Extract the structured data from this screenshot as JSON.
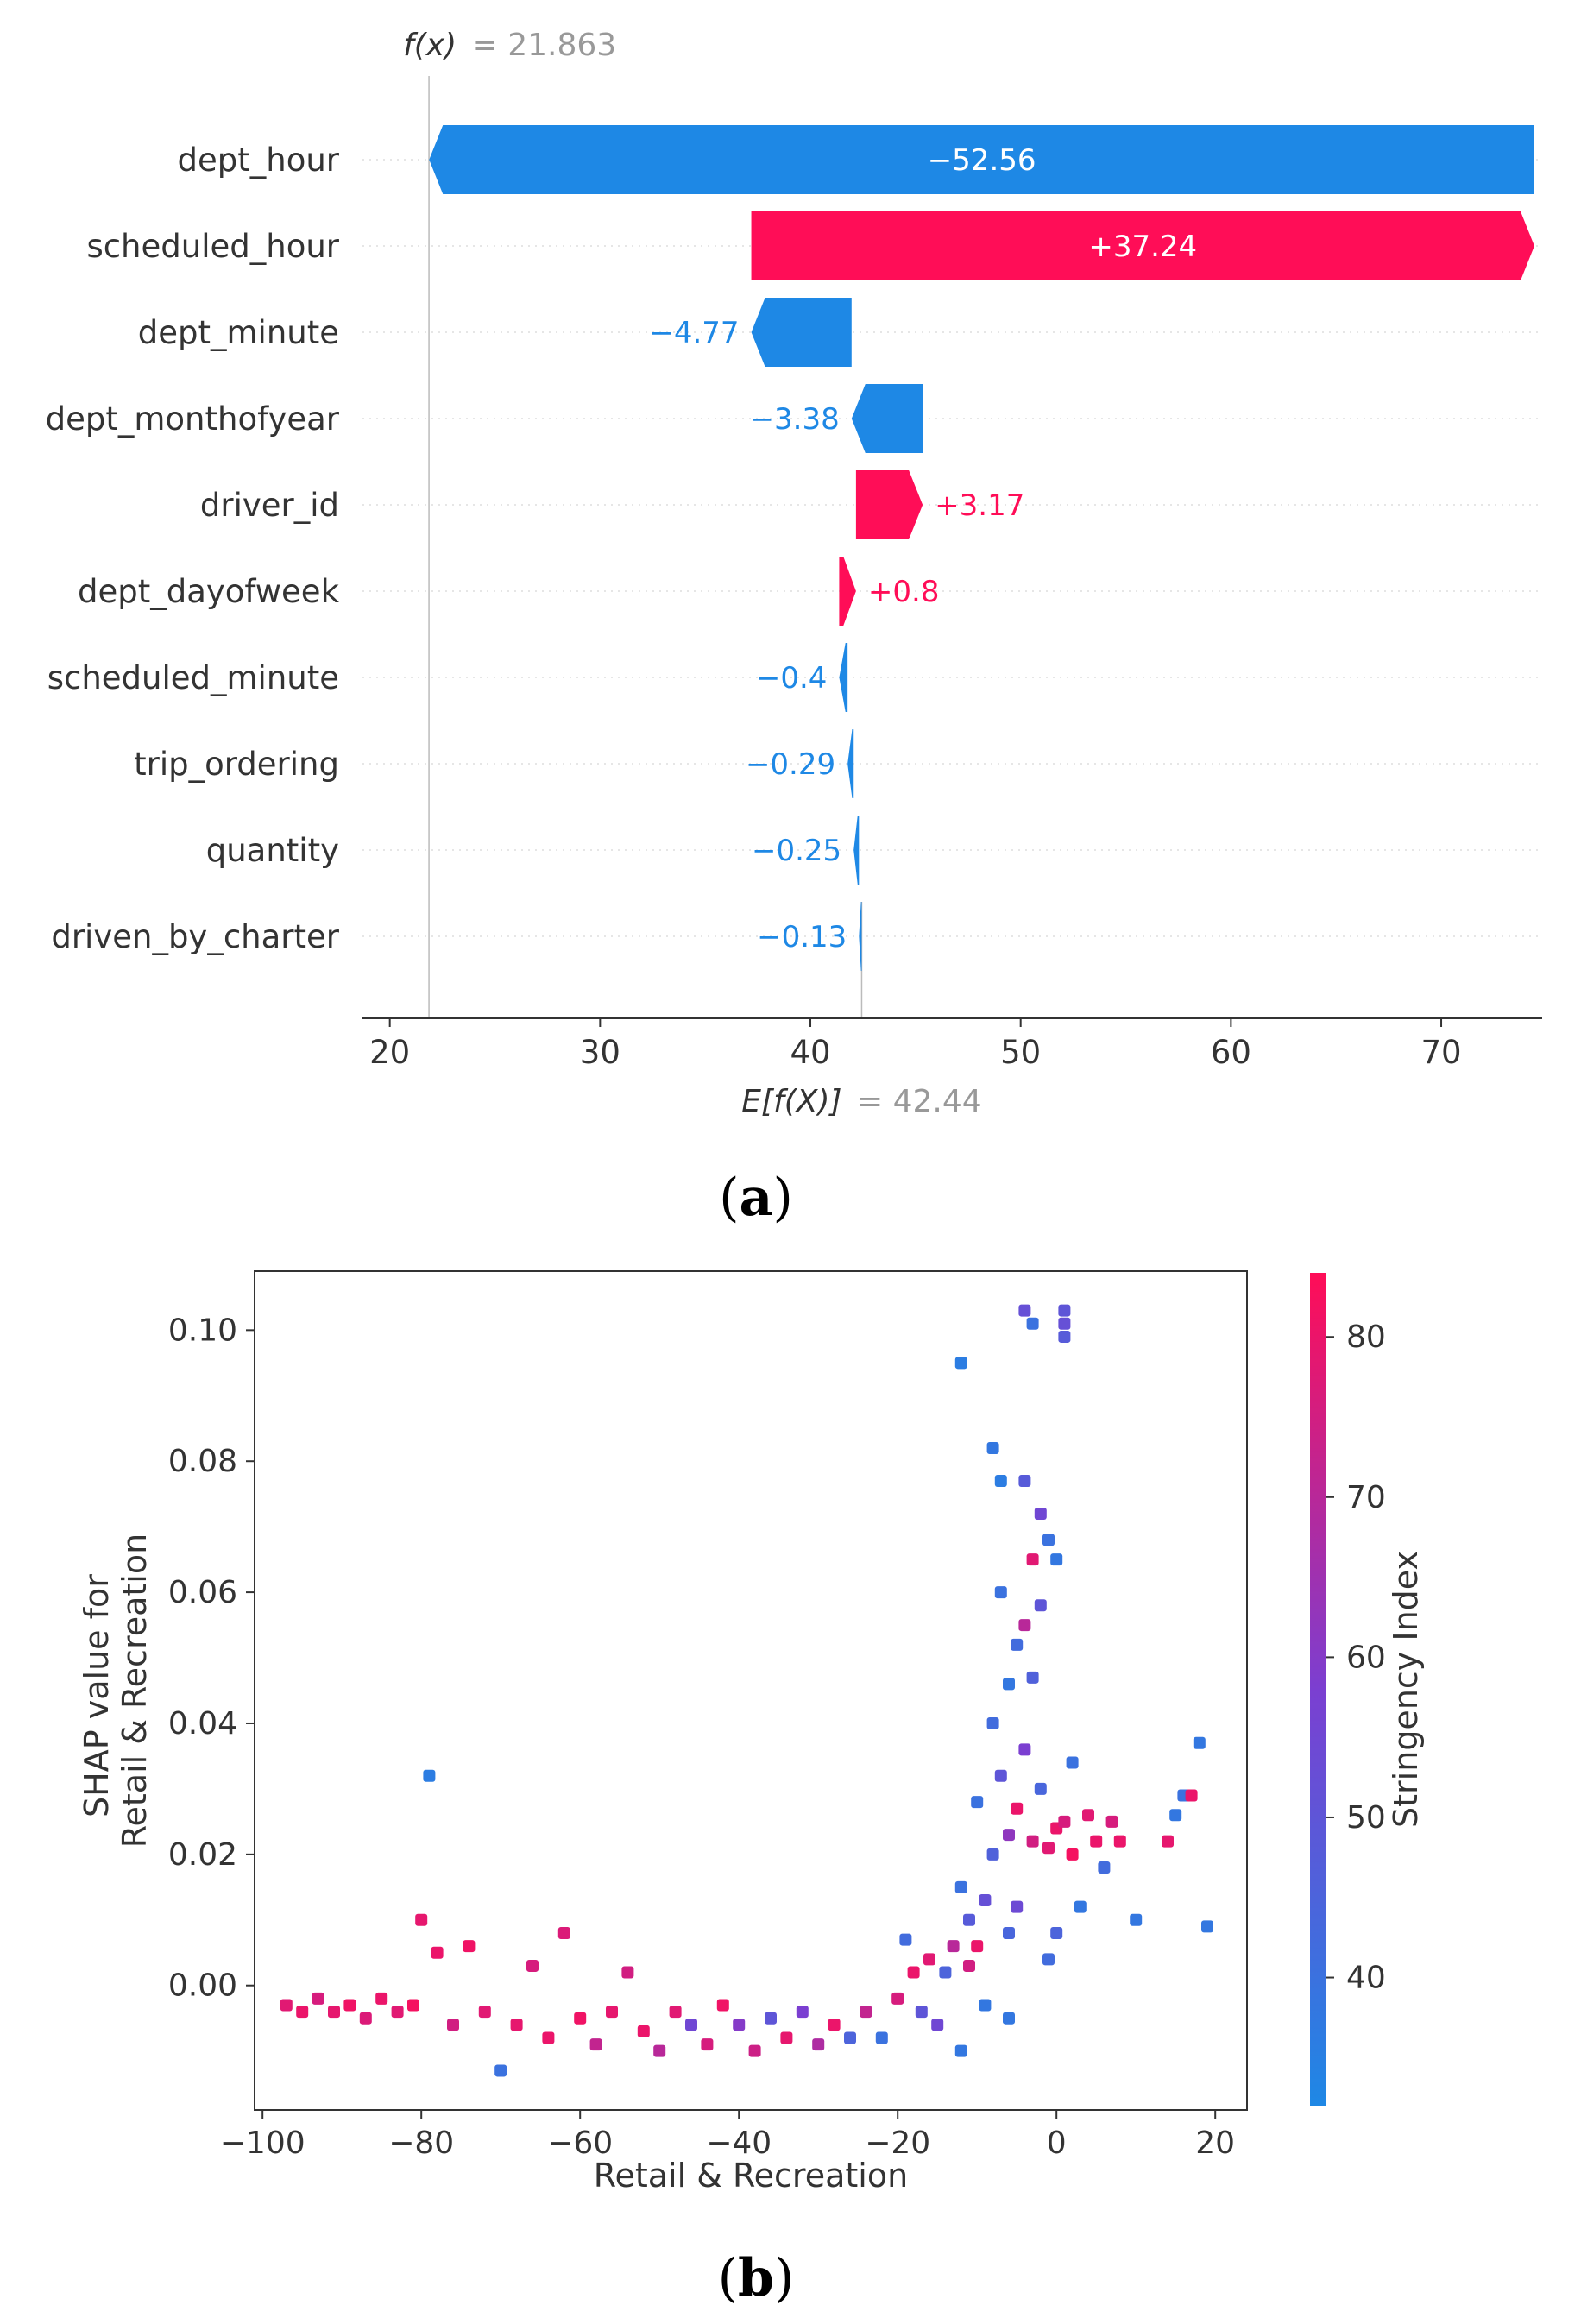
{
  "panels": {
    "a": {
      "label_open": "(",
      "label_letter": "a",
      "label_close": ")"
    },
    "b": {
      "label_open": "(",
      "label_letter": "b",
      "label_close": ")"
    }
  },
  "colors": {
    "positive": "#ff0d57",
    "negative": "#1e88e5",
    "text_gray": "#999999"
  },
  "chart_data": [
    {
      "type": "bar",
      "subtype": "shap-waterfall",
      "fx_label": "f(x)",
      "fx_eq": "= 21.863",
      "fx_value": 21.863,
      "base_label": "E[f(X)]",
      "base_eq": "= 42.44",
      "base_value": 42.44,
      "xlim": [
        18.7,
        74.8
      ],
      "xticks": [
        20,
        30,
        40,
        50,
        60,
        70
      ],
      "xtick_labels": [
        "20",
        "30",
        "40",
        "50",
        "60",
        "70"
      ],
      "bars": [
        {
          "feature": "dept_hour",
          "value": -52.56,
          "label": "−52.56"
        },
        {
          "feature": "scheduled_hour",
          "value": 37.24,
          "label": "+37.24"
        },
        {
          "feature": "dept_minute",
          "value": -4.77,
          "label": "−4.77"
        },
        {
          "feature": "dept_monthofyear",
          "value": -3.38,
          "label": "−3.38"
        },
        {
          "feature": "driver_id",
          "value": 3.17,
          "label": "+3.17"
        },
        {
          "feature": "dept_dayofweek",
          "value": 0.8,
          "label": "+0.8"
        },
        {
          "feature": "scheduled_minute",
          "value": -0.4,
          "label": "−0.4"
        },
        {
          "feature": "trip_ordering",
          "value": -0.29,
          "label": "−0.29"
        },
        {
          "feature": "quantity",
          "value": -0.25,
          "label": "−0.25"
        },
        {
          "feature": "driven_by_charter",
          "value": -0.13,
          "label": "−0.13"
        }
      ]
    },
    {
      "type": "scatter",
      "subtype": "shap-dependence",
      "xlabel": "Retail & Recreation",
      "ylabel_line1": "SHAP value for",
      "ylabel_line2": "Retail & Recreation",
      "xlim": [
        -101,
        24
      ],
      "ylim": [
        -0.019,
        0.109
      ],
      "xticks": [
        -100,
        -80,
        -60,
        -40,
        -20,
        0,
        20
      ],
      "xtick_labels": [
        "−100",
        "−80",
        "−60",
        "−40",
        "−20",
        "0",
        "20"
      ],
      "yticks": [
        0.0,
        0.02,
        0.04,
        0.06,
        0.08,
        0.1
      ],
      "ytick_labels": [
        "0.00",
        "0.02",
        "0.04",
        "0.06",
        "0.08",
        "0.10"
      ],
      "colorbar": {
        "label": "Stringency Index",
        "range": [
          32,
          84
        ],
        "ticks": [
          40,
          50,
          60,
          70,
          80
        ],
        "tick_labels": [
          "40",
          "50",
          "60",
          "70",
          "80"
        ],
        "low_color": "#1e88e5",
        "high_color": "#ff0d57"
      },
      "points": [
        [
          -97,
          -0.003,
          78
        ],
        [
          -95,
          -0.004,
          80
        ],
        [
          -93,
          -0.002,
          76
        ],
        [
          -91,
          -0.004,
          79
        ],
        [
          -89,
          -0.003,
          81
        ],
        [
          -87,
          -0.005,
          77
        ],
        [
          -85,
          -0.002,
          80
        ],
        [
          -83,
          -0.004,
          78
        ],
        [
          -81,
          -0.003,
          82
        ],
        [
          -80,
          0.01,
          79
        ],
        [
          -79,
          0.032,
          36
        ],
        [
          -78,
          0.005,
          80
        ],
        [
          -76,
          -0.006,
          75
        ],
        [
          -74,
          0.006,
          81
        ],
        [
          -72,
          -0.004,
          78
        ],
        [
          -70,
          -0.013,
          40
        ],
        [
          -68,
          -0.006,
          79
        ],
        [
          -66,
          0.003,
          76
        ],
        [
          -64,
          -0.008,
          80
        ],
        [
          -62,
          0.008,
          77
        ],
        [
          -60,
          -0.005,
          81
        ],
        [
          -58,
          -0.009,
          72
        ],
        [
          -56,
          -0.004,
          79
        ],
        [
          -54,
          0.002,
          75
        ],
        [
          -52,
          -0.007,
          80
        ],
        [
          -50,
          -0.01,
          70
        ],
        [
          -48,
          -0.004,
          78
        ],
        [
          -46,
          -0.006,
          55
        ],
        [
          -44,
          -0.009,
          76
        ],
        [
          -42,
          -0.003,
          81
        ],
        [
          -40,
          -0.006,
          60
        ],
        [
          -38,
          -0.01,
          74
        ],
        [
          -36,
          -0.005,
          50
        ],
        [
          -34,
          -0.008,
          79
        ],
        [
          -32,
          -0.004,
          58
        ],
        [
          -30,
          -0.009,
          68
        ],
        [
          -28,
          -0.006,
          80
        ],
        [
          -26,
          -0.008,
          45
        ],
        [
          -24,
          -0.004,
          72
        ],
        [
          -22,
          -0.008,
          40
        ],
        [
          -20,
          -0.002,
          76
        ],
        [
          -19,
          0.007,
          42
        ],
        [
          -18,
          0.002,
          80
        ],
        [
          -17,
          -0.004,
          50
        ],
        [
          -16,
          0.004,
          78
        ],
        [
          -15,
          -0.006,
          55
        ],
        [
          -14,
          0.002,
          45
        ],
        [
          -13,
          0.006,
          70
        ],
        [
          -12,
          -0.01,
          38
        ],
        [
          -12,
          0.095,
          36
        ],
        [
          -12,
          0.015,
          40
        ],
        [
          -11,
          0.003,
          75
        ],
        [
          -11,
          0.01,
          48
        ],
        [
          -10,
          0.006,
          80
        ],
        [
          -10,
          0.028,
          40
        ],
        [
          -9,
          0.013,
          52
        ],
        [
          -9,
          -0.003,
          38
        ],
        [
          -8,
          0.082,
          38
        ],
        [
          -8,
          0.04,
          42
        ],
        [
          -8,
          0.02,
          46
        ],
        [
          -7,
          0.077,
          36
        ],
        [
          -7,
          0.06,
          40
        ],
        [
          -7,
          0.032,
          50
        ],
        [
          -6,
          0.046,
          38
        ],
        [
          -6,
          0.023,
          62
        ],
        [
          -6,
          0.008,
          44
        ],
        [
          -6,
          -0.005,
          38
        ],
        [
          -5,
          0.052,
          42
        ],
        [
          -5,
          0.027,
          80
        ],
        [
          -5,
          0.012,
          54
        ],
        [
          -4,
          0.103,
          52
        ],
        [
          -4,
          0.077,
          48
        ],
        [
          -4,
          0.055,
          70
        ],
        [
          -4,
          0.036,
          58
        ],
        [
          -3,
          0.101,
          40
        ],
        [
          -3,
          0.065,
          78
        ],
        [
          -3,
          0.047,
          46
        ],
        [
          -3,
          0.022,
          75
        ],
        [
          -2,
          0.072,
          55
        ],
        [
          -2,
          0.058,
          50
        ],
        [
          -2,
          0.03,
          44
        ],
        [
          -1,
          0.068,
          40
        ],
        [
          -1,
          0.021,
          78
        ],
        [
          -1,
          0.004,
          42
        ],
        [
          0,
          0.065,
          38
        ],
        [
          0,
          0.024,
          80
        ],
        [
          0,
          0.008,
          45
        ],
        [
          1,
          0.103,
          50
        ],
        [
          1,
          0.101,
          52
        ],
        [
          1,
          0.099,
          48
        ],
        [
          1,
          0.025,
          76
        ],
        [
          2,
          0.034,
          40
        ],
        [
          2,
          0.02,
          82
        ],
        [
          3,
          0.012,
          38
        ],
        [
          4,
          0.026,
          78
        ],
        [
          5,
          0.022,
          80
        ],
        [
          6,
          0.018,
          42
        ],
        [
          7,
          0.025,
          76
        ],
        [
          8,
          0.022,
          80
        ],
        [
          10,
          0.01,
          38
        ],
        [
          14,
          0.022,
          79
        ],
        [
          15,
          0.026,
          38
        ],
        [
          16,
          0.029,
          40
        ],
        [
          17,
          0.029,
          80
        ],
        [
          18,
          0.037,
          38
        ],
        [
          19,
          0.009,
          38
        ]
      ]
    }
  ]
}
